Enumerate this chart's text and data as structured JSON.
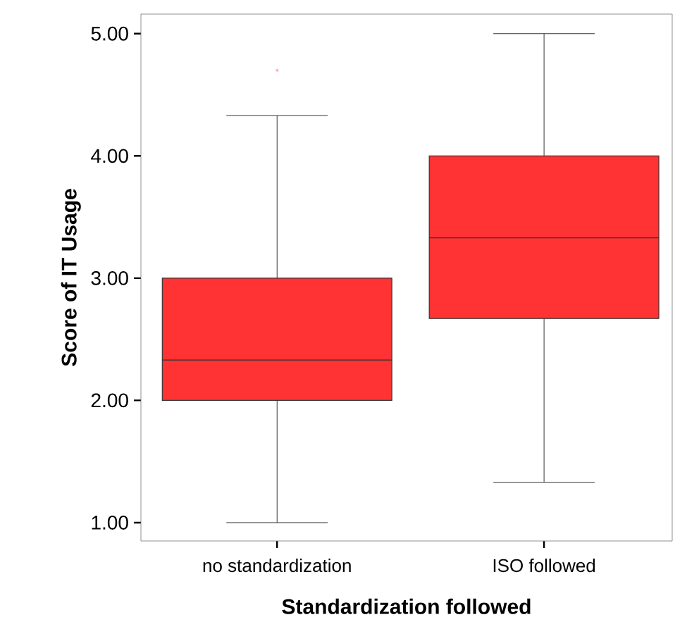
{
  "chart_data": {
    "type": "box",
    "xlabel": "Standardization followed",
    "ylabel": "Score of IT Usage",
    "categories": [
      "no standardization",
      "ISO followed"
    ],
    "color": "#ff3333",
    "boxes": [
      {
        "low": 1.0,
        "q1": 2.0,
        "median": 2.33,
        "q3": 3.0,
        "high": 4.33,
        "outliers": [
          4.7
        ]
      },
      {
        "low": 1.33,
        "q1": 2.67,
        "median": 3.33,
        "q3": 4.0,
        "high": 5.0
      }
    ],
    "ylim": [
      0.85,
      5.16
    ],
    "yticks": [
      {
        "value": 1,
        "label": "1.00"
      },
      {
        "value": 2,
        "label": "2.00"
      },
      {
        "value": 3,
        "label": "3.00"
      },
      {
        "value": 4,
        "label": "4.00"
      },
      {
        "value": 5,
        "label": "5.00"
      }
    ],
    "grid": false
  }
}
